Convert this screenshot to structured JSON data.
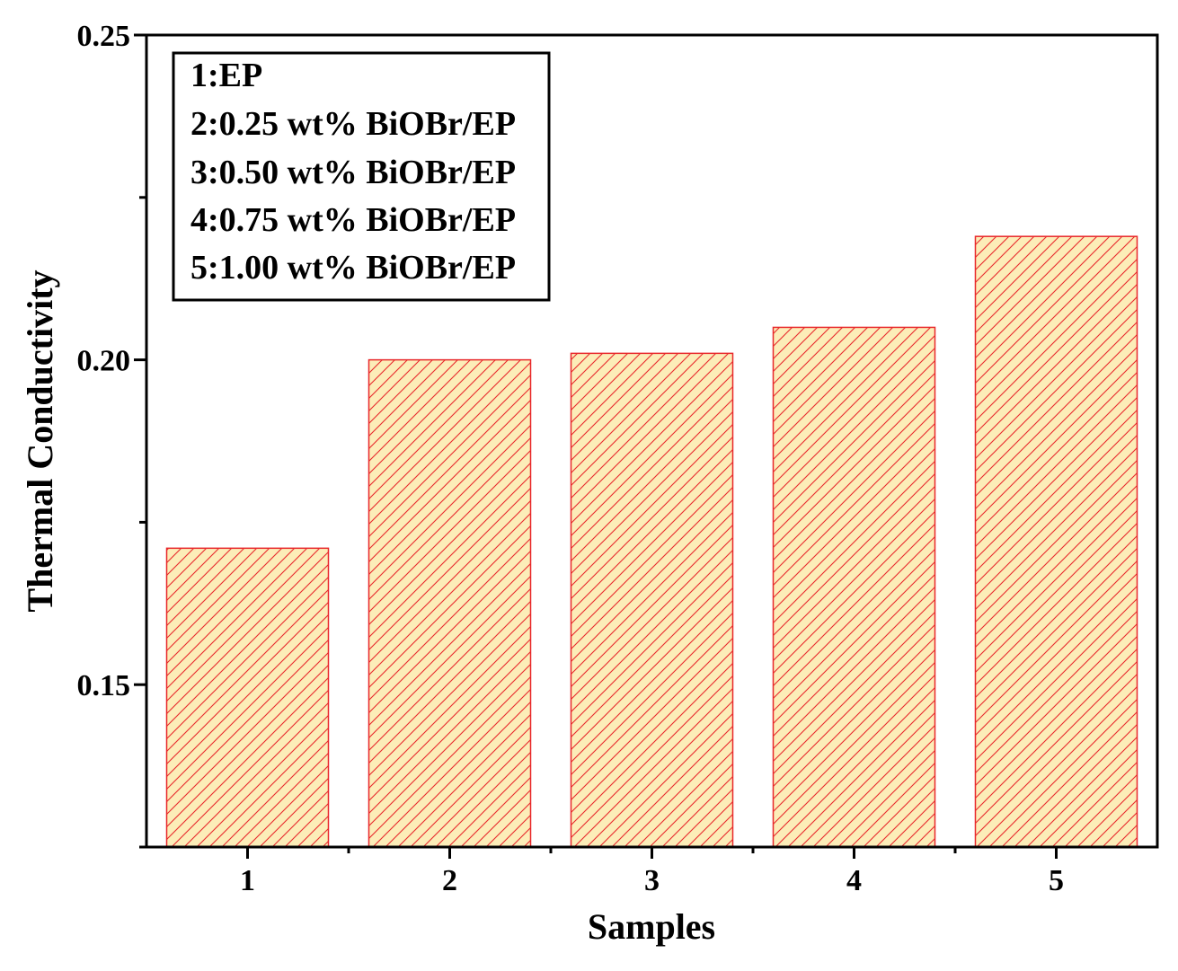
{
  "chart_data": {
    "type": "bar",
    "categories": [
      "1",
      "2",
      "3",
      "4",
      "5"
    ],
    "values": [
      0.171,
      0.2,
      0.201,
      0.205,
      0.219
    ],
    "xlabel": "Samples",
    "ylabel": "Thermal Conductivity",
    "ylim": [
      0.125,
      0.25
    ],
    "yticks": [
      "0.15",
      "0.20",
      "0.25"
    ],
    "legend_entries": [
      "1:EP",
      "2:0.25 wt% BiOBr/EP",
      "3:0.50 wt% BiOBr/EP",
      "4:0.75 wt% BiOBr/EP",
      "5:1.00 wt% BiOBr/EP"
    ],
    "legend_position": "top-left",
    "grid": false,
    "colors": {
      "bar_fill": "#fcedb8",
      "bar_edge": "#e8282b",
      "hatch": "#e8282b",
      "axis": "#000000"
    }
  }
}
